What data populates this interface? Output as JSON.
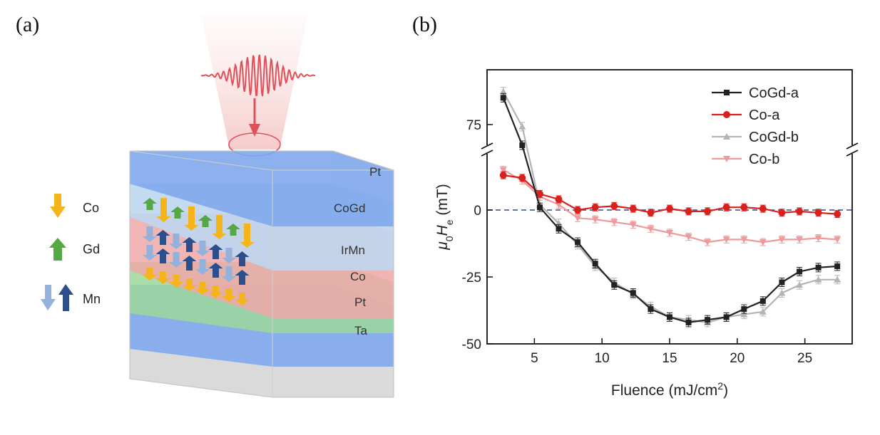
{
  "panels": {
    "a": {
      "label": "(a)",
      "layers": [
        "Pt",
        "CoGd",
        "IrMn",
        "Co",
        "Pt",
        "Ta"
      ],
      "legend": [
        {
          "label": "Co",
          "color": "#F5B51A"
        },
        {
          "label": "Gd",
          "color": "#55A844"
        },
        {
          "label": "Mn",
          "colors": [
            "#93B1DA",
            "#2B4F8C"
          ]
        }
      ]
    },
    "b": {
      "label": "(b)"
    }
  },
  "colors": {
    "Pt": "#7FA8EC",
    "CoGd": "#BCD6F0",
    "IrMn": "#F0A8A8",
    "Co": "#9BD89A",
    "Ta": "#DADADA",
    "laser": "#E0505A"
  },
  "chart_data": {
    "type": "line",
    "title": "",
    "xlabel": "Fluence (mJ/cm2)",
    "ylabel": "μ0He (mT)",
    "xlim": [
      1.5,
      28.5
    ],
    "x_ticks": [
      5,
      10,
      15,
      20,
      25
    ],
    "y_ticks": [
      -50,
      -25,
      0,
      75
    ],
    "y_axis_break": "between 20 and 70",
    "zero_reference": {
      "value": 0,
      "style": "dashed",
      "color": "#2B4F8C"
    },
    "legend_position": "top-right",
    "x": [
      2.7,
      4.1,
      5.4,
      6.8,
      8.2,
      9.5,
      10.9,
      12.3,
      13.6,
      15.0,
      16.4,
      17.8,
      19.2,
      20.5,
      21.9,
      23.3,
      24.6,
      26.0,
      27.4
    ],
    "series": [
      {
        "name": "CoGd-a",
        "color": "#222222",
        "marker": "square",
        "values": [
          88,
          65,
          1,
          -7,
          -12,
          -20,
          -28,
          -31,
          -37,
          -40,
          -42,
          -41,
          -40,
          -37,
          -34,
          -27,
          -23,
          -21.5,
          -21
        ]
      },
      {
        "name": "Co-a",
        "color": "#D9201C",
        "marker": "circle",
        "values": [
          13,
          12,
          6,
          4,
          0,
          1,
          1.5,
          0.5,
          -1,
          0.5,
          -0.5,
          -0.5,
          1,
          1,
          0.5,
          -1,
          -0.5,
          -1,
          -1.5
        ]
      },
      {
        "name": "CoGd-b",
        "color": "#B4B4B4",
        "marker": "triangle-up",
        "values": [
          91,
          74,
          2,
          -5,
          -13,
          -21,
          -27,
          -31.5,
          -36,
          -40,
          -41,
          -42,
          -40,
          -39,
          -38,
          -31,
          -28,
          -26,
          -26
        ]
      },
      {
        "name": "Co-b",
        "color": "#EE9A9A",
        "marker": "triangle-down",
        "values": [
          15,
          11,
          5,
          2,
          -3,
          -3.5,
          -4.5,
          -5.5,
          -7,
          -8.5,
          -10,
          -12,
          -11,
          -11,
          -12,
          -11,
          -11,
          -10.5,
          -11
        ]
      }
    ]
  }
}
